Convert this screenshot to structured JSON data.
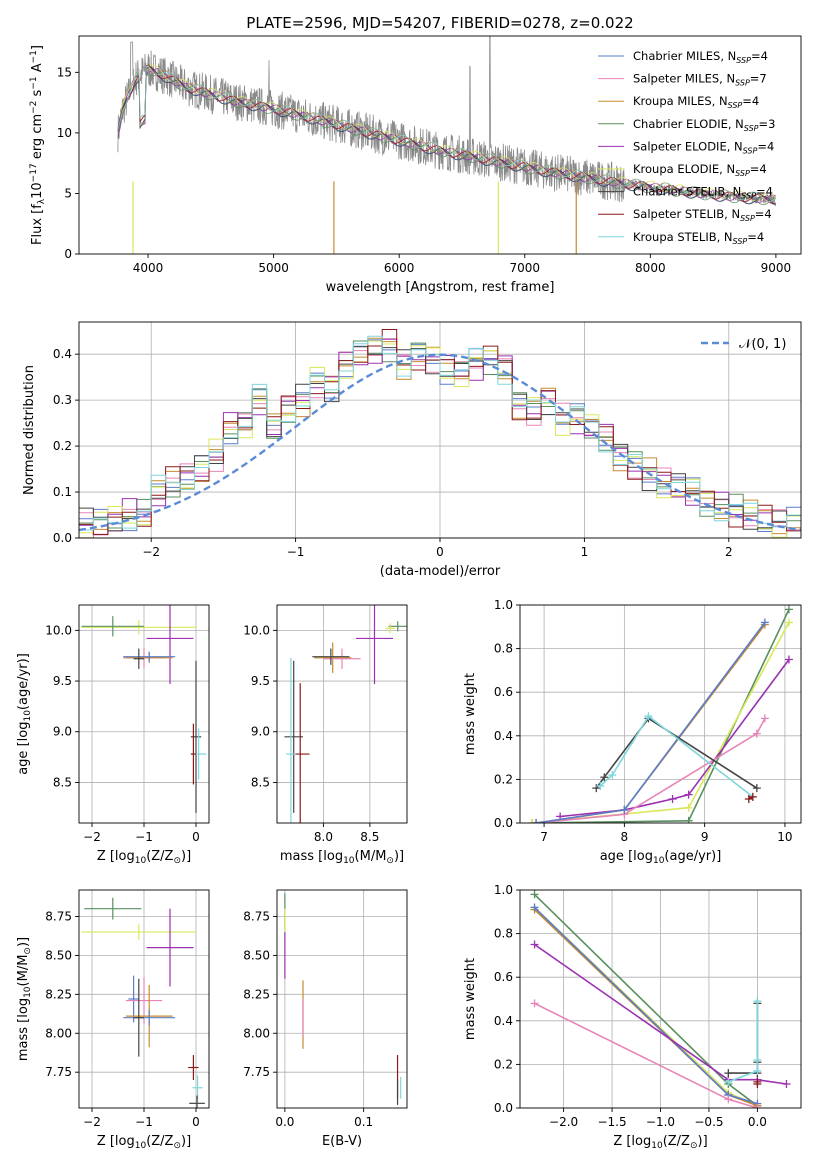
{
  "chart_data": [
    {
      "id": "spectrum",
      "type": "line",
      "title": "PLATE=2596, MJD=54207, FIBERID=0278, z=0.022",
      "xlabel": "wavelength [Angstrom, rest frame]",
      "ylabel": "Flux [f$_\\lambda$10$^{-17}$ erg cm$^{-2}$ s$^{-1}$ A$^{-1}$]",
      "xlim": [
        3450,
        9200
      ],
      "ylim": [
        0,
        18
      ],
      "xticks": [
        4000,
        5000,
        6000,
        7000,
        8000,
        9000
      ],
      "yticks": [
        0,
        5,
        10,
        15
      ],
      "xtick_labels": [
        "4000",
        "5000",
        "6000",
        "7000",
        "8000",
        "9000"
      ],
      "ytick_labels": [
        "0",
        "5",
        "10",
        "15"
      ],
      "grid": false,
      "legend_position": "top-right",
      "data_trend": {
        "x": [
          3750,
          3800,
          3900,
          4000,
          4100,
          4300,
          4500,
          4700,
          5000,
          5200,
          5500,
          5800,
          6000,
          6300,
          6600,
          6900,
          7200,
          7500,
          7800,
          8100,
          8400,
          8700,
          9000
        ],
        "y": [
          9.5,
          12.0,
          14.5,
          15.3,
          14.9,
          13.8,
          13.2,
          12.6,
          12.0,
          11.5,
          10.7,
          9.9,
          9.4,
          8.6,
          8.0,
          7.4,
          6.8,
          6.3,
          5.8,
          5.4,
          5.0,
          4.7,
          4.5
        ]
      },
      "legend": [
        {
          "label": "Chabrier MILES, N",
          "sub": "SSP",
          "suffix": "=4",
          "color": "#5b7ccc"
        },
        {
          "label": "Salpeter MILES, N",
          "sub": "SSP",
          "suffix": "=7",
          "color": "#e884b8"
        },
        {
          "label": "Kroupa MILES, N",
          "sub": "SSP",
          "suffix": "=4",
          "color": "#c78b2e"
        },
        {
          "label": "Chabrier ELODIE, N",
          "sub": "SSP",
          "suffix": "=3",
          "color": "#5a8f5f"
        },
        {
          "label": "Salpeter ELODIE, N",
          "sub": "SSP",
          "suffix": "=4",
          "color": "#9b30b0"
        },
        {
          "label": "Kroupa ELODIE, N",
          "sub": "SSP",
          "suffix": "=4",
          "color": "#d9e85a"
        },
        {
          "label": "Chabrier STELIB, N",
          "sub": "SSP",
          "suffix": "=4",
          "color": "#444444"
        },
        {
          "label": "Salpeter STELIB, N",
          "sub": "SSP",
          "suffix": "=4",
          "color": "#8b1a1a"
        },
        {
          "label": "Kroupa STELIB, N",
          "sub": "SSP",
          "suffix": "=4",
          "color": "#7fd6dc"
        }
      ]
    },
    {
      "id": "residuals",
      "type": "line",
      "xlabel": "(data-model)/error",
      "ylabel": "Normed distribution",
      "xlim": [
        -2.5,
        2.5
      ],
      "ylim": [
        0,
        0.47
      ],
      "xticks": [
        -2,
        -1,
        0,
        1,
        2
      ],
      "yticks": [
        0.0,
        0.1,
        0.2,
        0.3,
        0.4
      ],
      "xtick_labels": [
        "−2",
        "−1",
        "0",
        "1",
        "2"
      ],
      "ytick_labels": [
        "0.0",
        "0.1",
        "0.2",
        "0.3",
        "0.4"
      ],
      "grid": true,
      "legend_position": "top-right",
      "gaussian_label": "𝒩(0, 1)",
      "gaussian_color": "#5b8bd6",
      "bin_centers": [
        -2.45,
        -2.35,
        -2.25,
        -2.15,
        -2.05,
        -1.95,
        -1.85,
        -1.75,
        -1.65,
        -1.55,
        -1.45,
        -1.35,
        -1.25,
        -1.15,
        -1.05,
        -0.95,
        -0.85,
        -0.75,
        -0.65,
        -0.55,
        -0.45,
        -0.35,
        -0.25,
        -0.15,
        -0.05,
        0.05,
        0.15,
        0.25,
        0.35,
        0.45,
        0.55,
        0.65,
        0.75,
        0.85,
        0.95,
        1.05,
        1.15,
        1.25,
        1.35,
        1.45,
        1.55,
        1.65,
        1.75,
        1.85,
        1.95,
        2.05,
        2.15,
        2.25,
        2.35,
        2.45
      ],
      "hist_base": [
        0.03,
        0.03,
        0.04,
        0.05,
        0.05,
        0.1,
        0.12,
        0.13,
        0.15,
        0.18,
        0.24,
        0.25,
        0.3,
        0.24,
        0.28,
        0.3,
        0.34,
        0.33,
        0.38,
        0.4,
        0.41,
        0.42,
        0.38,
        0.4,
        0.39,
        0.37,
        0.36,
        0.38,
        0.39,
        0.37,
        0.29,
        0.28,
        0.3,
        0.26,
        0.26,
        0.24,
        0.22,
        0.18,
        0.16,
        0.14,
        0.12,
        0.11,
        0.1,
        0.08,
        0.07,
        0.06,
        0.05,
        0.04,
        0.03,
        0.03
      ],
      "hist_series_colors": [
        "#5b7ccc",
        "#e884b8",
        "#c78b2e",
        "#5a8f5f",
        "#9b30b0",
        "#d9e85a",
        "#444444",
        "#8b1a1a",
        "#7fd6dc"
      ]
    },
    {
      "id": "age-vs-Z",
      "type": "scatter",
      "xlabel": "Z [log$_{10}$($Z/Z_\\odot$)]",
      "ylabel": "age  [log$_{10}$($age/yr$)]",
      "xlim": [
        -2.25,
        0.25
      ],
      "ylim": [
        8.1,
        10.25
      ],
      "xticks": [
        -2,
        -1,
        0
      ],
      "yticks": [
        8.5,
        9.0,
        9.5,
        10.0
      ],
      "xtick_labels": [
        "−2",
        "−1",
        "0"
      ],
      "ytick_labels": [
        "8.5",
        "9.0",
        "9.5",
        "10.0"
      ],
      "grid": true,
      "points": [
        {
          "x": -1.1,
          "y": 10.03,
          "xerr": 1.1,
          "yerr": 0.07,
          "color": "#d9e85a"
        },
        {
          "x": -1.6,
          "y": 10.04,
          "xerr": 0.6,
          "yerr": 0.1,
          "color": "#5a8f5f"
        },
        {
          "x": -0.5,
          "y": 9.92,
          "xerr": 0.45,
          "yerr": 0.45,
          "color": "#9b30b0"
        },
        {
          "x": -1.0,
          "y": 9.73,
          "xerr": 0.4,
          "yerr": 0.1,
          "color": "#e884b8"
        },
        {
          "x": -0.9,
          "y": 9.73,
          "xerr": 0.45,
          "yerr": 0.05,
          "color": "#c78b2e"
        },
        {
          "x": -0.9,
          "y": 9.74,
          "xerr": 0.5,
          "yerr": 0.05,
          "color": "#5b7ccc"
        },
        {
          "x": -1.1,
          "y": 9.72,
          "xerr": 0.1,
          "yerr": 0.1,
          "color": "#444444"
        },
        {
          "x": 0.0,
          "y": 8.95,
          "xerr": 0.1,
          "yerr": 0.75,
          "color": "#444444"
        },
        {
          "x": 0.05,
          "y": 8.78,
          "xerr": 0.15,
          "yerr": 0.25,
          "color": "#7fd6dc"
        },
        {
          "x": -0.05,
          "y": 8.78,
          "xerr": 0.05,
          "yerr": 0.3,
          "color": "#8b1a1a"
        }
      ]
    },
    {
      "id": "age-vs-mass",
      "type": "scatter",
      "xlabel": "mass [log$_{10}$($M/M_\\odot$)]",
      "ylabel": "",
      "xlim": [
        7.5,
        8.9
      ],
      "ylim": [
        8.1,
        10.25
      ],
      "xticks": [
        8.0,
        8.5
      ],
      "yticks": [
        8.5,
        9.0,
        9.5,
        10.0
      ],
      "xtick_labels": [
        "8.0",
        "8.5"
      ],
      "ytick_labels": [
        "8.5",
        "9.0",
        "9.5",
        "10.0"
      ],
      "grid": true,
      "points": [
        {
          "x": 8.8,
          "y": 10.04,
          "xerr": 0.1,
          "yerr": 0.05,
          "color": "#5a8f5f"
        },
        {
          "x": 8.72,
          "y": 10.02,
          "xerr": 0.05,
          "yerr": 0.05,
          "color": "#d9e85a"
        },
        {
          "x": 8.55,
          "y": 9.92,
          "xerr": 0.2,
          "yerr": 0.45,
          "color": "#9b30b0"
        },
        {
          "x": 8.1,
          "y": 9.73,
          "xerr": 0.2,
          "yerr": 0.15,
          "color": "#c78b2e"
        },
        {
          "x": 8.2,
          "y": 9.72,
          "xerr": 0.2,
          "yerr": 0.1,
          "color": "#e884b8"
        },
        {
          "x": 8.08,
          "y": 9.74,
          "xerr": 0.2,
          "yerr": 0.08,
          "color": "#444444"
        },
        {
          "x": 7.68,
          "y": 8.95,
          "xerr": 0.1,
          "yerr": 0.75,
          "color": "#444444"
        },
        {
          "x": 7.75,
          "y": 8.78,
          "xerr": 0.1,
          "yerr": 0.7,
          "color": "#8b1a1a"
        },
        {
          "x": 7.65,
          "y": 8.78,
          "xerr": 0.05,
          "yerr": 0.95,
          "color": "#7fd6dc"
        }
      ]
    },
    {
      "id": "massweight-vs-age",
      "type": "line",
      "xlabel": "age  [log$_{10}$($age/yr$)]",
      "ylabel": "mass weight",
      "xlim": [
        6.7,
        10.2
      ],
      "ylim": [
        0,
        1.0
      ],
      "xticks": [
        7,
        8,
        9,
        10
      ],
      "yticks": [
        0.0,
        0.2,
        0.4,
        0.6,
        0.8,
        1.0
      ],
      "xtick_labels": [
        "7",
        "8",
        "9",
        "10"
      ],
      "ytick_labels": [
        "0.0",
        "0.2",
        "0.4",
        "0.6",
        "0.8",
        "1.0"
      ],
      "grid": true,
      "series": [
        {
          "color": "#5a8f5f",
          "x": [
            6.85,
            8.8,
            10.05
          ],
          "y": [
            0.0,
            0.01,
            0.98
          ]
        },
        {
          "color": "#d9e85a",
          "x": [
            6.85,
            8.8,
            10.05
          ],
          "y": [
            0.0,
            0.07,
            0.92
          ]
        },
        {
          "color": "#9b30b0",
          "x": [
            7.2,
            8.0,
            8.6,
            8.8,
            10.05
          ],
          "y": [
            0.03,
            0.06,
            0.11,
            0.13,
            0.75
          ]
        },
        {
          "color": "#e884b8",
          "x": [
            6.9,
            8.0,
            9.65,
            9.75
          ],
          "y": [
            0.0,
            0.04,
            0.41,
            0.48
          ]
        },
        {
          "color": "#c78b2e",
          "x": [
            6.9,
            8.0,
            9.75
          ],
          "y": [
            0.0,
            0.06,
            0.91
          ]
        },
        {
          "color": "#5b7ccc",
          "x": [
            6.9,
            8.0,
            9.75
          ],
          "y": [
            0.0,
            0.06,
            0.92
          ]
        },
        {
          "color": "#444444",
          "x": [
            7.65,
            7.75,
            8.3,
            9.65
          ],
          "y": [
            0.16,
            0.21,
            0.48,
            0.16
          ]
        },
        {
          "color": "#7fd6dc",
          "x": [
            7.7,
            7.85,
            8.3,
            9.6
          ],
          "y": [
            0.17,
            0.22,
            0.49,
            0.12
          ]
        },
        {
          "color": "#8b1a1a",
          "x": [
            9.55,
            9.6
          ],
          "y": [
            0.11,
            0.12
          ]
        }
      ]
    },
    {
      "id": "mass-vs-Z",
      "type": "scatter",
      "xlabel": "Z [log$_{10}$($Z/Z_\\odot$)]",
      "ylabel": "mass [log$_{10}$($M/M_\\odot$)]",
      "xlim": [
        -2.25,
        0.25
      ],
      "ylim": [
        7.52,
        8.92
      ],
      "xticks": [
        -2,
        -1,
        0
      ],
      "yticks": [
        7.75,
        8.0,
        8.25,
        8.5,
        8.75
      ],
      "xtick_labels": [
        "−2",
        "−1",
        "0"
      ],
      "ytick_labels": [
        "7.75",
        "8.00",
        "8.25",
        "8.50",
        "8.75"
      ],
      "grid": true,
      "points": [
        {
          "x": -1.6,
          "y": 8.8,
          "xerr": 0.55,
          "yerr": 0.07,
          "color": "#5a8f5f"
        },
        {
          "x": -1.1,
          "y": 8.65,
          "xerr": 1.1,
          "yerr": 0.05,
          "color": "#d9e85a"
        },
        {
          "x": -0.5,
          "y": 8.55,
          "xerr": 0.45,
          "yerr": 0.25,
          "color": "#9b30b0"
        },
        {
          "x": -1.2,
          "y": 8.22,
          "xerr": 0.1,
          "yerr": 0.15,
          "color": "#5b7ccc"
        },
        {
          "x": -1.0,
          "y": 8.21,
          "xerr": 0.35,
          "yerr": 0.15,
          "color": "#e884b8"
        },
        {
          "x": -0.9,
          "y": 8.11,
          "xerr": 0.45,
          "yerr": 0.2,
          "color": "#c78b2e"
        },
        {
          "x": -0.9,
          "y": 8.1,
          "xerr": 0.5,
          "yerr": 0.05,
          "color": "#5b7ccc"
        },
        {
          "x": -1.1,
          "y": 8.1,
          "xerr": 0.1,
          "yerr": 0.25,
          "color": "#444444"
        },
        {
          "x": -0.05,
          "y": 7.78,
          "xerr": 0.1,
          "yerr": 0.08,
          "color": "#8b1a1a"
        },
        {
          "x": 0.03,
          "y": 7.65,
          "xerr": 0.1,
          "yerr": 0.08,
          "color": "#7fd6dc"
        },
        {
          "x": 0.02,
          "y": 7.55,
          "xerr": 0.15,
          "yerr": 0.05,
          "color": "#444444"
        }
      ]
    },
    {
      "id": "mass-vs-ebv",
      "type": "scatter",
      "xlabel": "E(B-V)",
      "ylabel": "",
      "xlim": [
        -0.01,
        0.155
      ],
      "ylim": [
        7.52,
        8.92
      ],
      "xticks": [
        0.0,
        0.1
      ],
      "yticks": [
        7.75,
        8.0,
        8.25,
        8.5,
        8.75
      ],
      "xtick_labels": [
        "0.0",
        "0.1"
      ],
      "ytick_labels": [
        "7.75",
        "8.00",
        "8.25",
        "8.50",
        "8.75"
      ],
      "grid": true,
      "points": [
        {
          "x": 0.0,
          "y": 8.78,
          "xerr": 0.0,
          "yerr": 0.12,
          "color": "#5a8f5f"
        },
        {
          "x": 0.0,
          "y": 8.7,
          "xerr": 0.0,
          "yerr": 0.1,
          "color": "#d9e85a"
        },
        {
          "x": 0.0,
          "y": 8.5,
          "xerr": 0.0,
          "yerr": 0.15,
          "color": "#9b30b0"
        },
        {
          "x": 0.023,
          "y": 8.12,
          "xerr": 0.0,
          "yerr": 0.22,
          "color": "#c78b2e"
        },
        {
          "x": 0.023,
          "y": 8.1,
          "xerr": 0.0,
          "yerr": 0.12,
          "color": "#e884b8"
        },
        {
          "x": 0.143,
          "y": 7.72,
          "xerr": 0.0,
          "yerr": 0.14,
          "color": "#8b1a1a"
        },
        {
          "x": 0.147,
          "y": 7.65,
          "xerr": 0.0,
          "yerr": 0.07,
          "color": "#7fd6dc"
        },
        {
          "x": 0.143,
          "y": 7.62,
          "xerr": 0.0,
          "yerr": 0.08,
          "color": "#444444"
        }
      ]
    },
    {
      "id": "massweight-vs-Z",
      "type": "line",
      "xlabel": "Z [log$_{10}$($Z/Z_\\odot$)]",
      "ylabel": "mass weight",
      "xlim": [
        -2.45,
        0.45
      ],
      "ylim": [
        0,
        1.0
      ],
      "xticks": [
        -2.0,
        -1.5,
        -1.0,
        -0.5,
        0.0
      ],
      "yticks": [
        0.0,
        0.2,
        0.4,
        0.6,
        0.8,
        1.0
      ],
      "xtick_labels": [
        "−2.0",
        "−1.5",
        "−1.0",
        "−0.5",
        "0.0"
      ],
      "ytick_labels": [
        "0.0",
        "0.2",
        "0.4",
        "0.6",
        "0.8",
        "1.0"
      ],
      "grid": true,
      "series": [
        {
          "color": "#5a8f5f",
          "x": [
            -2.3,
            -0.3,
            0.0
          ],
          "y": [
            0.98,
            0.11,
            0.01
          ]
        },
        {
          "color": "#d9e85a",
          "x": [
            -2.3,
            -0.3,
            0.0
          ],
          "y": [
            0.92,
            0.07,
            0.01
          ]
        },
        {
          "color": "#c78b2e",
          "x": [
            -2.3,
            -0.3,
            0.0
          ],
          "y": [
            0.91,
            0.06,
            0.01
          ]
        },
        {
          "color": "#5b7ccc",
          "x": [
            -2.3,
            -0.3,
            0.0
          ],
          "y": [
            0.92,
            0.06,
            0.02
          ]
        },
        {
          "color": "#9b30b0",
          "x": [
            -2.3,
            -0.3,
            0.0,
            0.3
          ],
          "y": [
            0.75,
            0.13,
            0.13,
            0.11
          ]
        },
        {
          "color": "#e884b8",
          "x": [
            -2.3,
            -0.3,
            0.0
          ],
          "y": [
            0.48,
            0.04,
            0.0
          ]
        },
        {
          "color": "#444444",
          "x": [
            -0.3,
            0.0,
            0.0,
            0.0
          ],
          "y": [
            0.16,
            0.16,
            0.21,
            0.48
          ]
        },
        {
          "color": "#7fd6dc",
          "x": [
            -0.3,
            0.0,
            0.0,
            0.0
          ],
          "y": [
            0.12,
            0.17,
            0.22,
            0.49
          ]
        },
        {
          "color": "#8b1a1a",
          "x": [
            0.0,
            0.0
          ],
          "y": [
            0.11,
            0.12
          ]
        }
      ]
    }
  ]
}
